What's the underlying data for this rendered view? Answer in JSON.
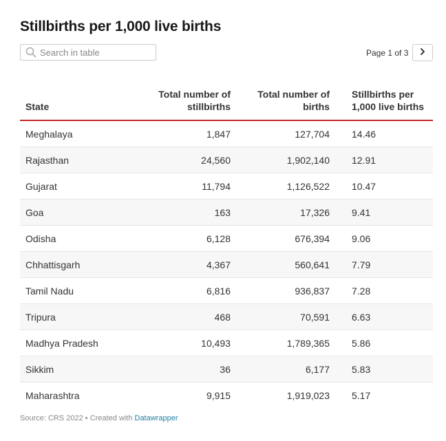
{
  "title": "Stillbirths per 1,000 live births",
  "search": {
    "placeholder": "Search in table"
  },
  "pagination": {
    "text": "Page 1 of 3"
  },
  "table": {
    "headers": {
      "state": "State",
      "stillbirths": "Total number of stillbirths",
      "births": "Total number of births",
      "rate": "Stillbirths per 1,000 live births"
    },
    "rows": [
      [
        "Meghalaya",
        "1,847",
        "127,704",
        "14.46"
      ],
      [
        "Rajasthan",
        "24,560",
        "1,902,140",
        "12.91"
      ],
      [
        "Gujarat",
        "11,794",
        "1,126,522",
        "10.47"
      ],
      [
        "Goa",
        "163",
        "17,326",
        "9.41"
      ],
      [
        "Odisha",
        "6,128",
        "676,394",
        "9.06"
      ],
      [
        "Chhattisgarh",
        "4,367",
        "560,641",
        "7.79"
      ],
      [
        "Tamil Nadu",
        "6,816",
        "936,837",
        "7.28"
      ],
      [
        "Tripura",
        "468",
        "70,591",
        "6.63"
      ],
      [
        "Madhya Pradesh",
        "10,493",
        "1,789,365",
        "5.86"
      ],
      [
        "Sikkim",
        "36",
        "6,177",
        "5.83"
      ],
      [
        "Maharashtra",
        "9,915",
        "1,919,023",
        "5.17"
      ]
    ]
  },
  "footer": {
    "source": "Source: CRS 2022",
    "separator": " • ",
    "created_with": "Created with ",
    "tool": "Datawrapper"
  },
  "colors": {
    "header_rule": "#c1272d",
    "link": "#1d81a2",
    "stripe": "#f7f7f7"
  },
  "chart_data": {
    "type": "table",
    "title": "Stillbirths per 1,000 live births",
    "columns": [
      "State",
      "Total number of stillbirths",
      "Total number of births",
      "Stillbirths per 1,000 live births"
    ],
    "rows": [
      {
        "state": "Meghalaya",
        "stillbirths": 1847,
        "births": 127704,
        "rate": 14.46
      },
      {
        "state": "Rajasthan",
        "stillbirths": 24560,
        "births": 1902140,
        "rate": 12.91
      },
      {
        "state": "Gujarat",
        "stillbirths": 11794,
        "births": 1126522,
        "rate": 10.47
      },
      {
        "state": "Goa",
        "stillbirths": 163,
        "births": 17326,
        "rate": 9.41
      },
      {
        "state": "Odisha",
        "stillbirths": 6128,
        "births": 676394,
        "rate": 9.06
      },
      {
        "state": "Chhattisgarh",
        "stillbirths": 4367,
        "births": 560641,
        "rate": 7.79
      },
      {
        "state": "Tamil Nadu",
        "stillbirths": 6816,
        "births": 936837,
        "rate": 7.28
      },
      {
        "state": "Tripura",
        "stillbirths": 468,
        "births": 70591,
        "rate": 6.63
      },
      {
        "state": "Madhya Pradesh",
        "stillbirths": 10493,
        "births": 1789365,
        "rate": 5.86
      },
      {
        "state": "Sikkim",
        "stillbirths": 36,
        "births": 6177,
        "rate": 5.83
      },
      {
        "state": "Maharashtra",
        "stillbirths": 9915,
        "births": 1919023,
        "rate": 5.17
      }
    ]
  }
}
